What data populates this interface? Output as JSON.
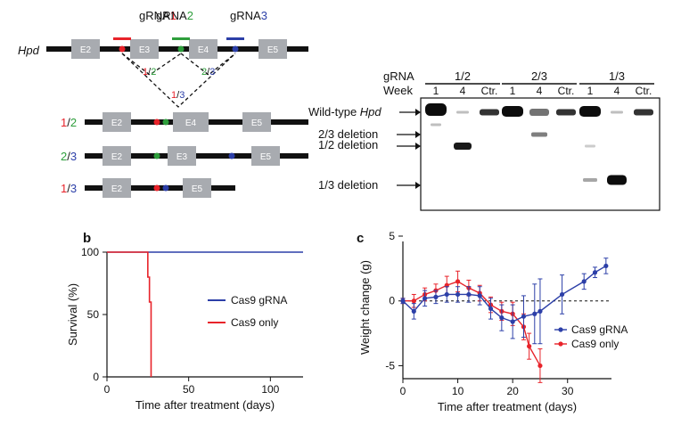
{
  "colors": {
    "red": "#e8232a",
    "green": "#2e9e3c",
    "blue": "#2c3fa8",
    "exon": "#a8abb0",
    "cas9_gRNA": "#2c3fa8",
    "cas9_only": "#e8232a"
  },
  "panel_a": {
    "gene": "Hpd",
    "grnas": [
      {
        "prefix": "gRNA",
        "num": "1",
        "color": "red"
      },
      {
        "prefix": "gRNA",
        "num": "2",
        "color": "green"
      },
      {
        "prefix": "gRNA",
        "num": "3",
        "color": "blue"
      }
    ],
    "exons_top": [
      "E2",
      "E3",
      "E4",
      "E5"
    ],
    "junctions": [
      {
        "a": "1",
        "b": "2",
        "ca": "red",
        "cb": "green"
      },
      {
        "a": "2",
        "b": "3",
        "ca": "green",
        "cb": "blue"
      },
      {
        "a": "1",
        "b": "3",
        "ca": "red",
        "cb": "blue"
      }
    ],
    "products": [
      {
        "a": "1",
        "b": "2",
        "ca": "red",
        "cb": "green",
        "exons": [
          "E2",
          "E4",
          "E5"
        ]
      },
      {
        "a": "2",
        "b": "3",
        "ca": "green",
        "cb": "blue",
        "exons": [
          "E2",
          "E3",
          "E5"
        ]
      },
      {
        "a": "1",
        "b": "3",
        "ca": "red",
        "cb": "blue",
        "exons": [
          "E2",
          "E5"
        ]
      }
    ],
    "slash": "/"
  },
  "gel": {
    "row_label_grna": "gRNA",
    "row_label_week": "Week",
    "groups": [
      {
        "name": "1/2",
        "lanes": [
          "1",
          "4",
          "Ctr."
        ]
      },
      {
        "name": "2/3",
        "lanes": [
          "1",
          "4",
          "Ctr."
        ]
      },
      {
        "name": "1/3",
        "lanes": [
          "1",
          "4",
          "Ctr."
        ]
      }
    ],
    "band_labels": {
      "wt_prefix": "Wild-type ",
      "wt_gene": "Hpd",
      "del23": "2/3 deletion",
      "del12": "1/2 deletion",
      "del13": "1/3 deletion"
    }
  },
  "panel_b": {
    "label": "b",
    "chart_data": {
      "type": "line",
      "xlabel": "Time after treatment (days)",
      "ylabel": "Survival (%)",
      "xlim": [
        0,
        120
      ],
      "ylim": [
        0,
        100
      ],
      "xticks": [
        0,
        50,
        100
      ],
      "yticks": [
        0,
        50,
        100
      ],
      "series": [
        {
          "name": "Cas9 gRNA",
          "color": "#2c3fa8",
          "x": [
            0,
            120
          ],
          "y": [
            100,
            100
          ]
        },
        {
          "name": "Cas9 only",
          "color": "#e8232a",
          "x": [
            0,
            25,
            25,
            26,
            26,
            27,
            27
          ],
          "y": [
            100,
            100,
            80,
            80,
            60,
            60,
            0
          ]
        }
      ],
      "legend": "center-right"
    }
  },
  "panel_c": {
    "label": "c",
    "chart_data": {
      "type": "line",
      "xlabel": "Time after treatment (days)",
      "ylabel": "Weight change (g)",
      "xlim": [
        0,
        38
      ],
      "ylim": [
        -6,
        5
      ],
      "xticks": [
        0,
        10,
        20,
        30
      ],
      "yticks": [
        -5,
        0,
        5
      ],
      "series": [
        {
          "name": "Cas9 gRNA",
          "color": "#2c3fa8",
          "x": [
            0,
            2,
            4,
            6,
            8,
            10,
            12,
            14,
            16,
            18,
            20,
            22,
            24,
            25,
            29,
            33,
            35,
            37
          ],
          "y": [
            0,
            -0.8,
            0.2,
            0.3,
            0.5,
            0.5,
            0.5,
            0.4,
            -0.6,
            -1.3,
            -1.6,
            -1.2,
            -1.0,
            -0.8,
            0.5,
            1.5,
            2.2,
            2.7
          ],
          "err": [
            0.2,
            0.6,
            0.6,
            0.5,
            0.6,
            0.6,
            0.6,
            0.7,
            0.8,
            1.0,
            1.3,
            1.6,
            2.3,
            2.5,
            1.5,
            0.6,
            0.4,
            0.6
          ]
        },
        {
          "name": "Cas9 only",
          "color": "#e8232a",
          "x": [
            0,
            2,
            4,
            6,
            8,
            10,
            12,
            14,
            16,
            18,
            20,
            22,
            23,
            25
          ],
          "y": [
            0,
            0,
            0.5,
            0.8,
            1.2,
            1.5,
            1.0,
            0.6,
            -0.3,
            -0.8,
            -1.0,
            -2.0,
            -3.5,
            -5.0
          ],
          "err": [
            0.2,
            0.5,
            0.5,
            0.5,
            0.7,
            0.8,
            0.6,
            0.6,
            0.6,
            0.7,
            0.9,
            1.0,
            1.0,
            1.3
          ]
        }
      ],
      "zero_line": "dashed",
      "legend": "bottom-right"
    }
  }
}
